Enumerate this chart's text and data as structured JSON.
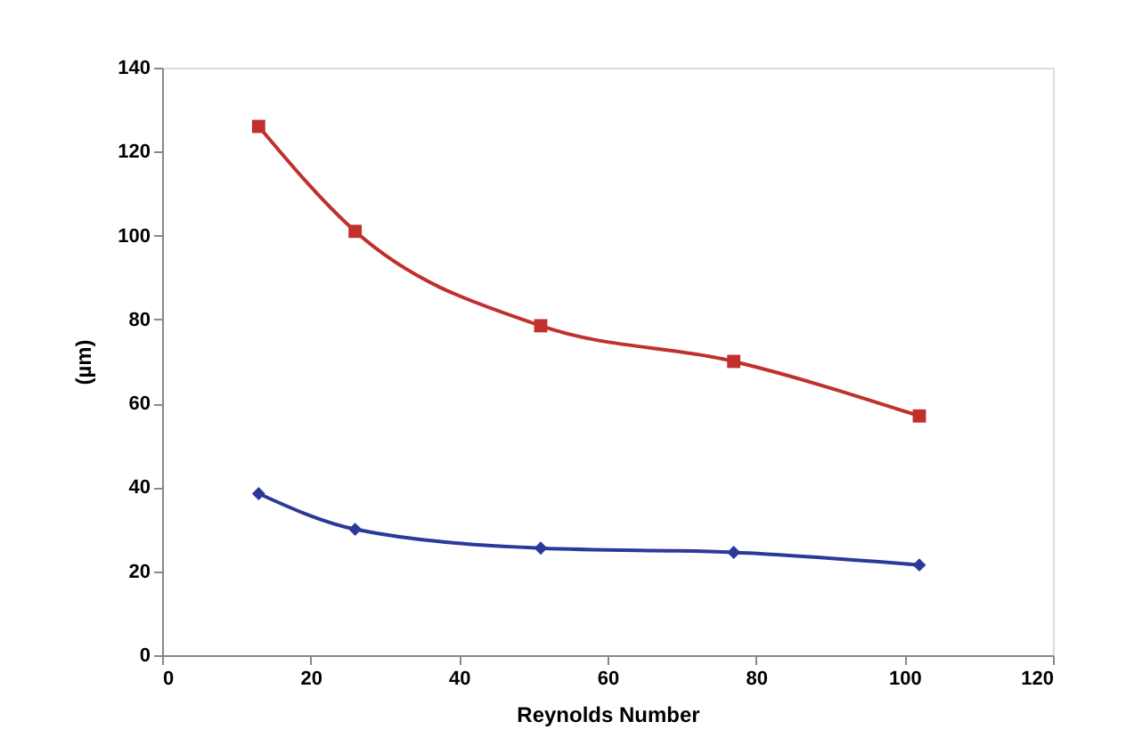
{
  "chart_data": {
    "type": "line",
    "xlabel": "Reynolds Number",
    "ylabel": "(µm)",
    "xlim": [
      0,
      120
    ],
    "xticks": [
      0,
      20,
      40,
      60,
      80,
      100,
      120
    ],
    "ylim": [
      0,
      140
    ],
    "yticks": [
      0,
      20,
      40,
      60,
      80,
      100,
      120,
      140
    ],
    "grid": false,
    "legend": false,
    "x": [
      13,
      26,
      51,
      77,
      102
    ],
    "series": [
      {
        "color": "#c0302c",
        "marker": "square",
        "values": [
          126,
          101,
          78.5,
          70,
          57
        ]
      },
      {
        "color": "#2b3a9a",
        "marker": "diamond",
        "values": [
          38.5,
          30,
          25.5,
          24.5,
          21.5
        ]
      }
    ]
  }
}
